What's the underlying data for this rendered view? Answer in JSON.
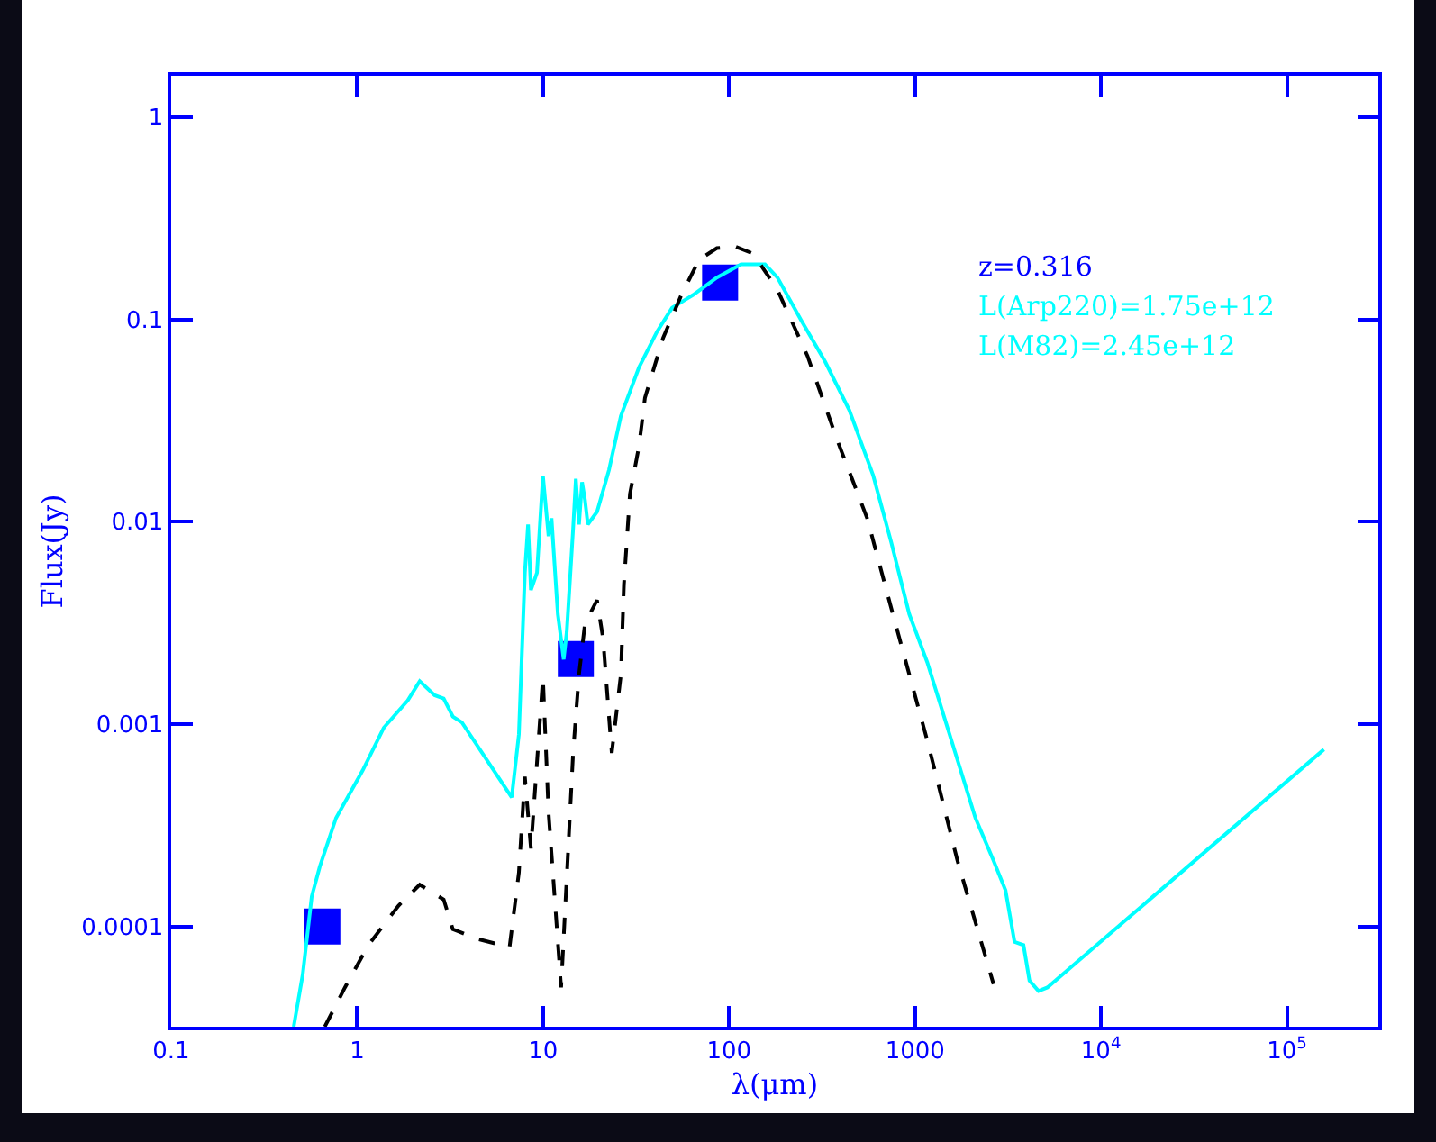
{
  "chart_data": {
    "type": "line",
    "xlabel": "λ(μm)",
    "ylabel": "Flux(Jy)",
    "log": "xy",
    "grid": false,
    "xlim": [
      0.1,
      310000
    ],
    "ylim": [
      3.2e-05,
      1.6
    ],
    "xticks": [
      0.1,
      1,
      10,
      100,
      1000,
      {
        "value": 10000,
        "label": "10$^{4}$"
      },
      {
        "value": 100000,
        "label": "10$^{5}$"
      }
    ],
    "yticks": [
      0.0001,
      0.001,
      0.01,
      0.1,
      1
    ],
    "annotations": [
      "z=0.316",
      "L(Arp220)=1.75e+12",
      "L(M82)=2.45e+12"
    ],
    "series": [
      {
        "color": "#00ffff",
        "line_style": "solid",
        "x": [
          0.456,
          0.51,
          0.57,
          0.63,
          0.77,
          1.07,
          1.39,
          1.87,
          2.17,
          2.61,
          2.92,
          3.27,
          3.66,
          6.78,
          7.41,
          7.98,
          8.3,
          8.6,
          9.27,
          9.98,
          10.4,
          10.7,
          11.1,
          12.0,
          12.9,
          13.4,
          14.5,
          15.0,
          15.6,
          16.2,
          16.8,
          17.4,
          19.5,
          22.6,
          26.2,
          32.8,
          41,
          49.4,
          64,
          86,
          116,
          156,
          182,
          244,
          329,
          443,
          596,
          745,
          931,
          1164,
          2113,
          2642,
          3066,
          3427,
          3830,
          4125,
          4613,
          5150,
          158000
        ],
        "values": [
          3.2e-05,
          5.8e-05,
          0.000141,
          0.000198,
          0.000344,
          0.00059,
          0.00096,
          0.00131,
          0.00163,
          0.00139,
          0.00134,
          0.00109,
          0.00102,
          0.000435,
          0.00089,
          0.0056,
          0.0097,
          0.0046,
          0.0056,
          0.0169,
          0.0112,
          0.0085,
          0.0104,
          0.0035,
          0.00209,
          0.00285,
          0.0092,
          0.0163,
          0.0097,
          0.0157,
          0.0128,
          0.0097,
          0.0112,
          0.018,
          0.0333,
          0.058,
          0.087,
          0.114,
          0.132,
          0.161,
          0.187,
          0.187,
          0.161,
          0.099,
          0.0617,
          0.0356,
          0.0169,
          0.0079,
          0.0035,
          0.00202,
          0.000344,
          0.000212,
          0.000151,
          8.4e-05,
          8.1e-05,
          5.4e-05,
          4.8e-05,
          5e-05,
          0.00075
        ]
      },
      {
        "color": "#000000",
        "line_style": "dashed",
        "x": [
          0.67,
          0.86,
          1.15,
          1.67,
          2.17,
          2.92,
          3.27,
          4.4,
          6.6,
          7.41,
          7.98,
          8.6,
          9.98,
          10.7,
          12.5,
          14.5,
          15.6,
          16.8,
          19.5,
          21,
          23.4,
          26.2,
          27.2,
          29.3,
          32.8,
          35.3,
          44.2,
          55.2,
          69,
          86,
          108,
          135,
          182,
          264,
          381,
          553,
          745,
          1164,
          1690,
          2642
        ],
        "values": [
          3.2e-05,
          5e-05,
          8.1e-05,
          0.000127,
          0.000161,
          0.000136,
          9.7e-05,
          8.7e-05,
          7.9e-05,
          0.000185,
          0.00055,
          0.000243,
          0.0017,
          0.000366,
          5e-05,
          0.00072,
          0.00176,
          0.00315,
          0.0041,
          0.00266,
          0.00072,
          0.00176,
          0.0049,
          0.0137,
          0.0237,
          0.041,
          0.081,
          0.131,
          0.197,
          0.225,
          0.229,
          0.211,
          0.14,
          0.066,
          0.0254,
          0.0104,
          0.00374,
          0.00083,
          0.000212,
          5.2e-05
        ]
      },
      {
        "type": "scatter",
        "color": "#0000ff",
        "marker": "square",
        "x": [
          0.65,
          15.0,
          89.5
        ],
        "values": [
          0.0001,
          0.0021,
          0.152
        ]
      }
    ]
  }
}
